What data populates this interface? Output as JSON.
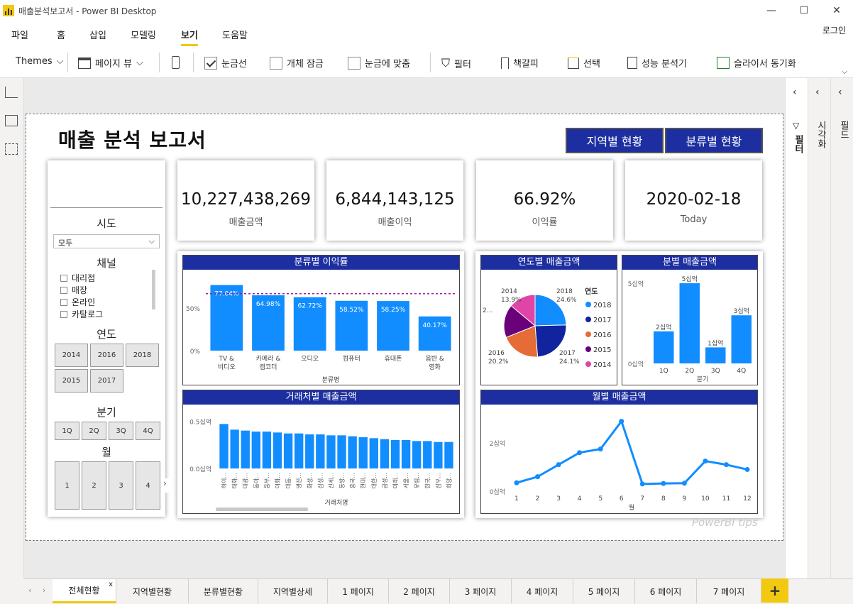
{
  "window": {
    "title": "매출분석보고서 - Power BI Desktop",
    "minimize": "—",
    "maximize": "☐",
    "close": "✕"
  },
  "menu": {
    "items": [
      "파일",
      "홈",
      "삽입",
      "모델링",
      "보기",
      "도움말"
    ],
    "login": "로그인"
  },
  "ribbon": {
    "themes": "Themes",
    "page_view": "페이지 뷰",
    "gridlines": "눈금선",
    "lock_objects": "개체 잠금",
    "snap_to_grid": "눈금에 맞춤",
    "filters": "필터",
    "bookmarks": "책갈피",
    "selection": "선택",
    "performance": "성능 분석기",
    "sync_slicers": "슬라이서 동기화",
    "gridlines_checked": true,
    "lock_checked": false,
    "snap_checked": false
  },
  "panes": {
    "filter": "필터",
    "visualization": "시각화",
    "fields": "필드"
  },
  "report": {
    "title": "매출 분석 보고서",
    "nav_buttons": [
      "지역별 현황",
      "분류별 현황"
    ],
    "kpis": [
      {
        "value": "10,227,438,269",
        "label": "매출금액"
      },
      {
        "value": "6,844,143,125",
        "label": "매출이익"
      },
      {
        "value": "66.92%",
        "label": "이익률"
      },
      {
        "value": "2020-02-18",
        "label": "Today"
      }
    ],
    "slicers": {
      "region_title": "시도",
      "region_value": "모두",
      "channel_title": "채널",
      "channels": [
        "대리점",
        "매장",
        "온라인",
        "카탈로그"
      ],
      "year_title": "연도",
      "years": [
        "2014",
        "2016",
        "2018",
        "2015",
        "2017"
      ],
      "quarter_title": "분기",
      "quarters": [
        "1Q",
        "2Q",
        "3Q",
        "4Q"
      ],
      "month_title": "월",
      "months": [
        "1",
        "2",
        "3",
        "4"
      ]
    },
    "watermark": "PowerBI tips"
  },
  "chart_data": [
    {
      "id": "category-margin",
      "type": "bar",
      "title": "분류별 이익률",
      "xlabel": "분류명",
      "categories": [
        "TV &\n비디오",
        "카메라 &\n캠코더",
        "오디오",
        "컴퓨터",
        "휴대폰",
        "음반 &\n영화"
      ],
      "values": [
        77.04,
        64.98,
        62.72,
        58.52,
        58.25,
        40.17
      ],
      "data_labels": [
        "77.04%",
        "64.98%",
        "62.72%",
        "58.52%",
        "58.25%",
        "40.17%"
      ],
      "y_ticks": [
        "50%",
        "0%"
      ],
      "ylim": [
        0,
        90
      ],
      "reference_line": 66.92,
      "color": "#118dff"
    },
    {
      "id": "year-sales",
      "type": "pie",
      "title": "연도별 매출금액",
      "legend_title": "연도",
      "legend_position": "right",
      "slices": [
        {
          "name": "2018",
          "pct": 24.6,
          "label": "24.6%",
          "color": "#118dff"
        },
        {
          "name": "2017",
          "pct": 24.1,
          "label": "24.1%",
          "color": "#12239e"
        },
        {
          "name": "2016",
          "pct": 20.2,
          "label": "20.2%",
          "color": "#e66c37"
        },
        {
          "name": "2015",
          "pct": 17.2,
          "label": "2...",
          "color": "#6b007b"
        },
        {
          "name": "2014",
          "pct": 13.9,
          "label": "13.9%",
          "color": "#e044a7"
        }
      ]
    },
    {
      "id": "quarter-sales",
      "type": "bar",
      "title": "분별 매출금액",
      "xlabel": "분기",
      "categories": [
        "1Q",
        "2Q",
        "3Q",
        "4Q"
      ],
      "values": [
        2,
        5,
        1,
        3
      ],
      "data_labels": [
        "2십억",
        "5십억",
        "1십억",
        "3십억"
      ],
      "y_ticks": [
        "5십억",
        "0십억"
      ],
      "ylim": [
        0,
        5.4
      ],
      "color": "#118dff"
    },
    {
      "id": "customer-sales",
      "type": "bar",
      "title": "거래처별 매출금액",
      "xlabel": "거래처명",
      "categories": [
        "하이...",
        "태화...",
        "대광...",
        "동아...",
        "동부...",
        "이화...",
        "대동...",
        "명진...",
        "화성...",
        "삼성...",
        "신세...",
        "동방...",
        "흥국...",
        "현대...",
        "대한...",
        "금성...",
        "미래...",
        "서울...",
        "유림...",
        "한국...",
        "삼우...",
        "희망..."
      ],
      "values": [
        0.47,
        0.41,
        0.4,
        0.39,
        0.39,
        0.38,
        0.37,
        0.37,
        0.36,
        0.36,
        0.35,
        0.35,
        0.34,
        0.33,
        0.32,
        0.31,
        0.3,
        0.3,
        0.29,
        0.29,
        0.28,
        0.28
      ],
      "y_ticks": [
        "0.5십억",
        "0.0십억"
      ],
      "ylim": [
        0,
        0.6
      ],
      "color": "#118dff"
    },
    {
      "id": "month-sales",
      "type": "line",
      "title": "월별 매출금액",
      "xlabel": "월",
      "x": [
        "1",
        "2",
        "3",
        "4",
        "5",
        "6",
        "7",
        "8",
        "9",
        "10",
        "11",
        "12"
      ],
      "values": [
        0.35,
        0.6,
        1.1,
        1.6,
        1.75,
        2.9,
        0.3,
        0.32,
        0.33,
        1.25,
        1.1,
        0.9
      ],
      "y_ticks": [
        "2십억",
        "0십억"
      ],
      "ylim": [
        0,
        3.3
      ],
      "color": "#118dff"
    }
  ],
  "tabs": [
    "전체현황",
    "지역별현황",
    "분류별현황",
    "지역별상세",
    "1 페이지",
    "2 페이지",
    "3 페이지",
    "4 페이지",
    "5 페이지",
    "6 페이지",
    "7 페이지"
  ],
  "tab_close": "x"
}
